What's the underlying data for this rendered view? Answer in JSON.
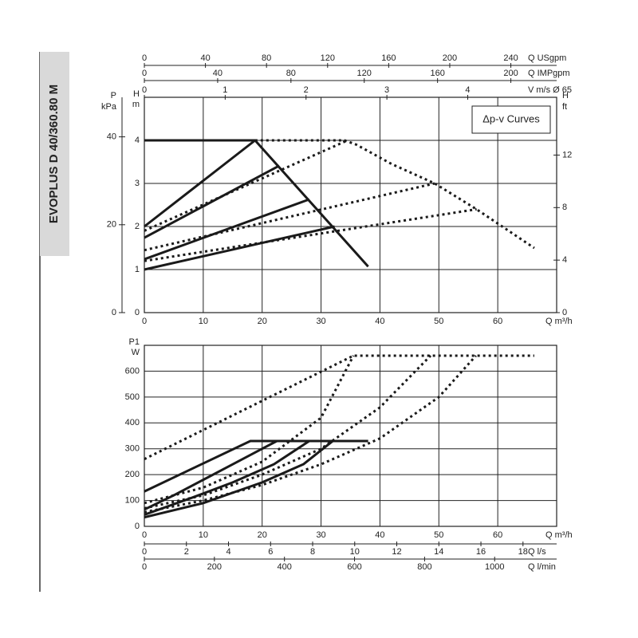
{
  "header": {
    "title": "EVOPLUS D 40/360.80 M"
  },
  "chart_data": [
    {
      "type": "line",
      "annotation": "Δp-v Curves",
      "xlabel": "Q m³/h",
      "ylabel": [
        "H",
        "m"
      ],
      "xlim": [
        0,
        70
      ],
      "xticks": [
        0,
        10,
        20,
        30,
        40,
        50,
        60
      ],
      "ylim": [
        0,
        5
      ],
      "yticks": [
        0,
        1,
        2,
        3,
        4
      ],
      "grid": true,
      "extra_axes": [
        {
          "side": "left",
          "label": [
            "P",
            "kPa"
          ],
          "lim": [
            0,
            49
          ],
          "ticks": [
            0,
            20,
            40
          ]
        },
        {
          "side": "right",
          "label": [
            "H",
            "ft"
          ],
          "lim": [
            0,
            16.4
          ],
          "ticks": [
            0,
            4,
            8,
            12
          ]
        },
        {
          "side": "top",
          "label": "Q USgpm",
          "lim": [
            0,
            270
          ],
          "ticks": [
            0,
            40,
            80,
            120,
            160,
            200,
            240
          ]
        },
        {
          "side": "top",
          "label": "Q IMPgpm",
          "lim": [
            0,
            225
          ],
          "ticks": [
            0,
            40,
            80,
            120,
            160,
            200
          ]
        },
        {
          "side": "top",
          "label": "V m/s Ø 65",
          "lim": [
            0,
            5.1
          ],
          "ticks": [
            0,
            1,
            2,
            3,
            4
          ]
        }
      ],
      "series": [
        {
          "style": "solid",
          "color": "#1a1a1a",
          "x": [
            0,
            18.8,
            38
          ],
          "values": [
            4,
            4,
            1.07
          ]
        },
        {
          "style": "solid",
          "color": "#1a1a1a",
          "x": [
            0,
            18.8
          ],
          "values": [
            2.0,
            4.0
          ]
        },
        {
          "style": "solid",
          "color": "#1a1a1a",
          "x": [
            0,
            22.9
          ],
          "values": [
            1.74,
            3.41
          ]
        },
        {
          "style": "solid",
          "color": "#1a1a1a",
          "x": [
            0,
            28
          ],
          "values": [
            1.24,
            2.63
          ]
        },
        {
          "style": "solid",
          "color": "#1a1a1a",
          "x": [
            0,
            32.3
          ],
          "values": [
            1.0,
            2.0
          ]
        },
        {
          "style": "dotted",
          "color": "#1a1a1a",
          "x": [
            18.8,
            34,
            36,
            42,
            49.3,
            56.4,
            66.2
          ],
          "values": [
            4,
            4,
            3.9,
            3.45,
            3.0,
            2.4,
            1.5
          ]
        },
        {
          "style": "dotted",
          "color": "#1a1a1a",
          "x": [
            0,
            34.5
          ],
          "values": [
            1.9,
            4.0
          ]
        },
        {
          "style": "dotted",
          "color": "#1a1a1a",
          "x": [
            0,
            49.3
          ],
          "values": [
            1.45,
            3.0
          ]
        },
        {
          "style": "dotted",
          "color": "#1a1a1a",
          "x": [
            0,
            56.4
          ],
          "values": [
            1.2,
            2.4
          ]
        }
      ]
    },
    {
      "type": "line",
      "xlabel": "Q m³/h",
      "ylabel": [
        "P1",
        "W"
      ],
      "xlim": [
        0,
        70
      ],
      "xticks": [
        0,
        10,
        20,
        30,
        40,
        50,
        60
      ],
      "ylim": [
        0,
        700
      ],
      "yticks": [
        0,
        100,
        200,
        300,
        400,
        500,
        600
      ],
      "grid": true,
      "extra_axes": [
        {
          "side": "bottom",
          "label": "Q l/s",
          "lim": [
            0,
            19.6
          ],
          "ticks": [
            0,
            2,
            4,
            6,
            8,
            10,
            12,
            14,
            16,
            18
          ]
        },
        {
          "side": "bottom",
          "label": "Q l/min",
          "lim": [
            0,
            1177
          ],
          "ticks": [
            0,
            200,
            400,
            600,
            800,
            1000
          ]
        }
      ],
      "series": [
        {
          "style": "solid",
          "color": "#1a1a1a",
          "x": [
            0,
            18,
            38
          ],
          "values": [
            135,
            330,
            330
          ]
        },
        {
          "style": "solid",
          "color": "#1a1a1a",
          "x": [
            0,
            5,
            10,
            15,
            20,
            22.5
          ],
          "values": [
            65,
            120,
            180,
            240,
            300,
            330
          ]
        },
        {
          "style": "solid",
          "color": "#1a1a1a",
          "x": [
            0,
            8,
            15,
            22,
            28
          ],
          "values": [
            45,
            110,
            170,
            240,
            330
          ]
        },
        {
          "style": "solid",
          "color": "#1a1a1a",
          "x": [
            0,
            10,
            20,
            27,
            32
          ],
          "values": [
            35,
            90,
            170,
            240,
            330
          ]
        },
        {
          "style": "dotted",
          "color": "#1a1a1a",
          "x": [
            0,
            35.5,
            66.2
          ],
          "values": [
            260,
            660,
            660
          ]
        },
        {
          "style": "dotted",
          "color": "#1a1a1a",
          "x": [
            0,
            10,
            20,
            30,
            35.5
          ],
          "values": [
            90,
            150,
            250,
            420,
            660
          ]
        },
        {
          "style": "dotted",
          "color": "#1a1a1a",
          "x": [
            0,
            10,
            20,
            30,
            40,
            48.6
          ],
          "values": [
            70,
            120,
            200,
            300,
            460,
            660
          ]
        },
        {
          "style": "dotted",
          "color": "#1a1a1a",
          "x": [
            0,
            10,
            20,
            30,
            40,
            50,
            56.3
          ],
          "values": [
            55,
            100,
            160,
            240,
            340,
            500,
            660
          ]
        }
      ]
    }
  ]
}
